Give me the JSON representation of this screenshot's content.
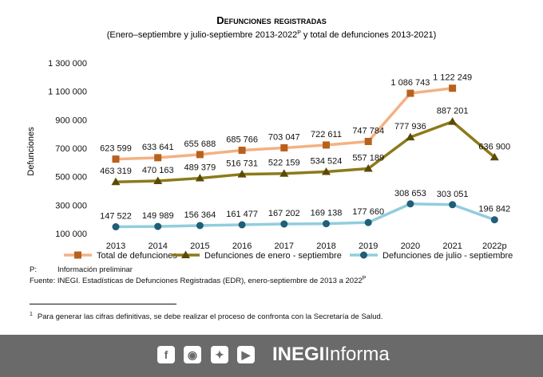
{
  "chart_data": {
    "type": "line",
    "title": "Defunciones registradas",
    "subtitle_pre": "(Enero–septiembre y julio-septiembre 2013-2022",
    "subtitle_sup": "P",
    "subtitle_post": " y total de defunciones 2013-2021)",
    "ylabel": "Defunciones",
    "xlabel": "",
    "categories": [
      "2013",
      "2014",
      "2015",
      "2016",
      "2017",
      "2018",
      "2019",
      "2020",
      "2021",
      "2022p"
    ],
    "ylim": [
      100000,
      1300000
    ],
    "yticks": [
      100000,
      300000,
      500000,
      700000,
      900000,
      1100000,
      1300000
    ],
    "ytick_labels": [
      "100 000",
      "300 000",
      "500 000",
      "700 000",
      "900 000",
      "1 100 000",
      "1 300 000"
    ],
    "grid": false,
    "legend_position": "bottom",
    "series": [
      {
        "name": "Total de defunciones",
        "color": "#f4b183",
        "marker_color": "#b8611e",
        "marker": "square",
        "values": [
          623599,
          633641,
          655688,
          685766,
          703047,
          722611,
          747784,
          1086743,
          1122249,
          null
        ],
        "labels": [
          "623 599",
          "633 641",
          "655 688",
          "685 766",
          "703 047",
          "722 611",
          "747 784",
          "1 086 743",
          "1 122 249",
          ""
        ]
      },
      {
        "name": "Defunciones de enero - septiembre",
        "color": "#8c7a1a",
        "marker_color": "#5a4a06",
        "marker": "triangle",
        "values": [
          463319,
          470163,
          489379,
          516731,
          522159,
          534524,
          557189,
          777936,
          887201,
          636900
        ],
        "labels": [
          "463 319",
          "470 163",
          "489 379",
          "516 731",
          "522 159",
          "534 524",
          "557 189",
          "777 936",
          "887 201",
          "636 900"
        ]
      },
      {
        "name": "Defunciones de julio - septiembre",
        "color": "#92cddc",
        "marker_color": "#1f5f77",
        "marker": "circle",
        "values": [
          147522,
          149989,
          156364,
          161477,
          167202,
          169138,
          177660,
          308653,
          303051,
          196842
        ],
        "labels": [
          "147 522",
          "149 989",
          "156 364",
          "161 477",
          "167 202",
          "169 138",
          "177 660",
          "308 653",
          "303 051",
          "196 842"
        ]
      }
    ]
  },
  "notes": {
    "p_symbol": "P:",
    "p_text": "Información preliminar",
    "source_pre": "Fuente: INEGI. Estadísticas de Defunciones Registradas (EDR), enero-septiembre de 2013 a 2022",
    "source_sup": "P",
    "footnote_num": "1",
    "footnote_text": "Para generar las cifras definitivas, se debe realizar el proceso de confronta con la Secretaría de Salud."
  },
  "footer": {
    "icons": [
      "facebook-icon",
      "instagram-icon",
      "twitter-icon",
      "youtube-icon"
    ],
    "brand_bold": "INEGI",
    "brand_light": "Informa"
  }
}
